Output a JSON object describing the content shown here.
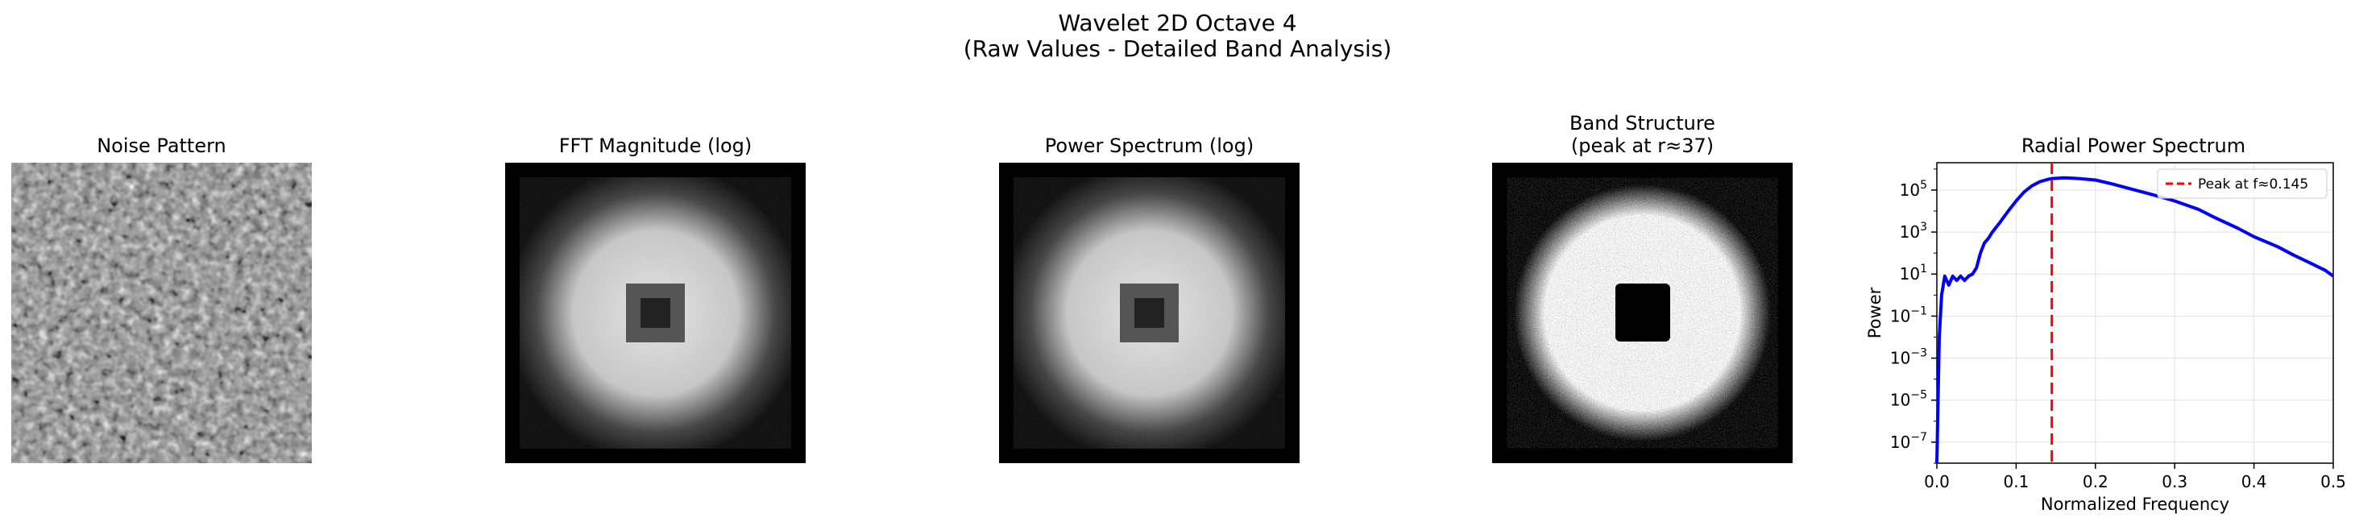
{
  "figure": {
    "title_line1": "Wavelet 2D Octave 4",
    "title_line2": "(Raw Values - Detailed Band Analysis)"
  },
  "panels": [
    {
      "title": "Noise Pattern"
    },
    {
      "title": "FFT Magnitude (log)"
    },
    {
      "title": "Power Spectrum (log)"
    },
    {
      "title_line1": "Band Structure",
      "title_line2": "(peak at r≈37)"
    }
  ],
  "chart_data": {
    "type": "line",
    "title": "Radial Power Spectrum",
    "xlabel": "Normalized Frequency",
    "ylabel": "Power",
    "yscale": "log",
    "xlim": [
      0.0,
      0.5
    ],
    "ylim_exponent": [
      -8,
      6.3
    ],
    "xticks": [
      "0.0",
      "0.1",
      "0.2",
      "0.3",
      "0.4",
      "0.5"
    ],
    "yticks": [
      {
        "base": "10",
        "exp": "5"
      },
      {
        "base": "10",
        "exp": "3"
      },
      {
        "base": "10",
        "exp": "1"
      },
      {
        "base": "10",
        "exp": "−1"
      },
      {
        "base": "10",
        "exp": "−3"
      },
      {
        "base": "10",
        "exp": "−5"
      },
      {
        "base": "10",
        "exp": "−7"
      }
    ],
    "grid": true,
    "legend_position": "top-right",
    "series": [
      {
        "color": "#0000ff",
        "x": [
          0.0,
          0.003,
          0.006,
          0.01,
          0.015,
          0.02,
          0.025,
          0.03,
          0.035,
          0.04,
          0.045,
          0.05,
          0.055,
          0.06,
          0.065,
          0.07,
          0.08,
          0.09,
          0.1,
          0.11,
          0.12,
          0.13,
          0.14,
          0.145,
          0.15,
          0.16,
          0.17,
          0.18,
          0.2,
          0.22,
          0.25,
          0.28,
          0.3,
          0.33,
          0.35,
          0.38,
          0.4,
          0.43,
          0.45,
          0.47,
          0.49,
          0.5
        ],
        "y": [
          1e-08,
          0.01,
          1,
          8,
          3,
          8,
          5,
          8,
          5,
          8,
          10,
          20,
          100,
          300,
          500,
          1000,
          3000,
          10000,
          30000,
          80000,
          160000,
          250000,
          320000,
          350000,
          360000,
          380000,
          370000,
          350000,
          300000,
          200000,
          100000,
          50000,
          30000,
          12000,
          5000,
          1500,
          600,
          200,
          80,
          35,
          15,
          8
        ]
      }
    ],
    "vline": {
      "x": 0.145,
      "color": "#ff0000",
      "label": "Peak at f≈0.145"
    }
  }
}
